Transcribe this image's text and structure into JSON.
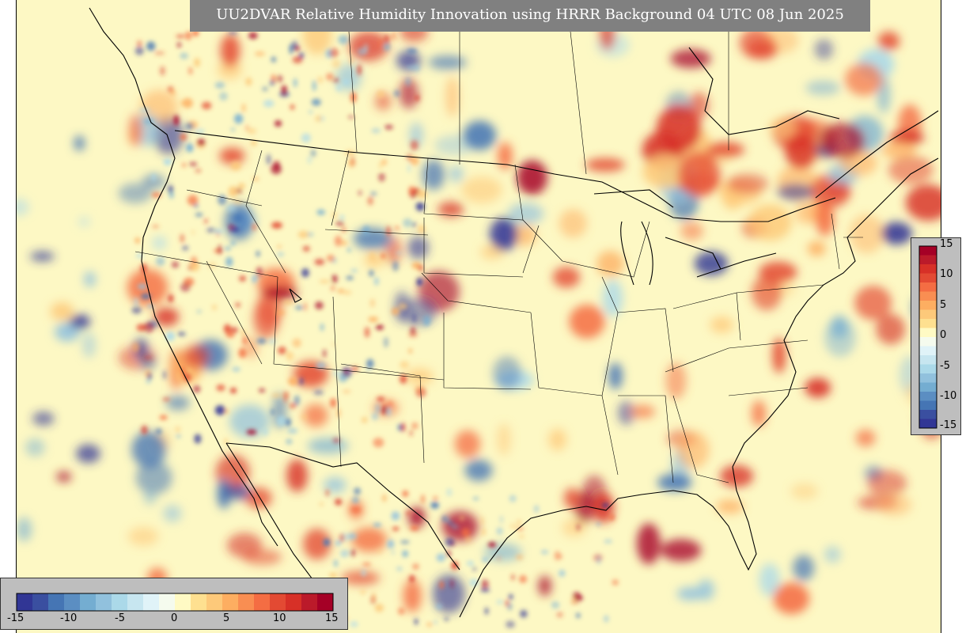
{
  "title": "UU2DVAR Relative Humidity Innovation using HRRR Background 04 UTC 08 Jun 2025",
  "colorbar": {
    "range": [
      -15,
      15
    ],
    "colors": [
      "#313695",
      "#3a4fa0",
      "#4575b4",
      "#5b8ec2",
      "#74add1",
      "#91c1dd",
      "#abd9e9",
      "#c7e6f0",
      "#e0f3f8",
      "#f5fbee",
      "#fffac4",
      "#fee090",
      "#fdc97a",
      "#fdae61",
      "#f98e52",
      "#f46d43",
      "#e34a33",
      "#d73027",
      "#bb1a2a",
      "#a50026"
    ],
    "right_ticks": [
      "15",
      "10",
      "5",
      "0",
      "-5",
      "-10",
      "-15"
    ],
    "bottom_ticks": [
      "-15",
      "-10",
      "-5",
      "0",
      "5",
      "10",
      "15"
    ]
  }
}
